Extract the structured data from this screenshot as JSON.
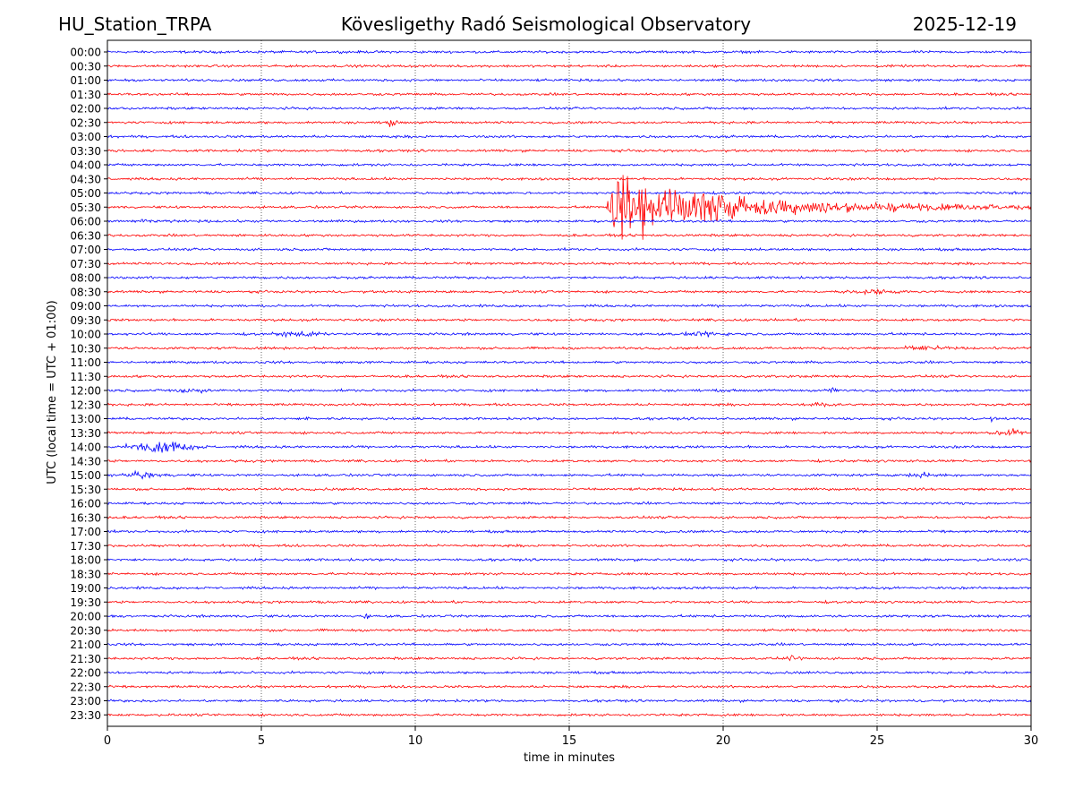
{
  "header": {
    "station": "HU_Station_TRPA",
    "title": "Kövesligethy Radó Seismological Observatory",
    "date": "2025-12-19"
  },
  "chart_data": {
    "type": "line",
    "title": "Kövesligethy Radó Seismological Observatory",
    "xlabel": "time in minutes",
    "ylabel": "UTC (local time = UTC + 01:00)",
    "xlim": [
      0,
      30
    ],
    "xticks": [
      0,
      5,
      10,
      15,
      20,
      25,
      30
    ],
    "grid": "vertical dotted at x ticks",
    "trace_colors": [
      "#0000ff",
      "#ff0000"
    ],
    "rows": [
      "00:00",
      "00:30",
      "01:00",
      "01:30",
      "02:00",
      "02:30",
      "03:00",
      "03:30",
      "04:00",
      "04:30",
      "05:00",
      "05:30",
      "06:00",
      "06:30",
      "07:00",
      "07:30",
      "08:00",
      "08:30",
      "09:00",
      "09:30",
      "10:00",
      "10:30",
      "11:00",
      "11:30",
      "12:00",
      "12:30",
      "13:00",
      "13:30",
      "14:00",
      "14:30",
      "15:00",
      "15:30",
      "16:00",
      "16:30",
      "17:00",
      "17:30",
      "18:00",
      "18:30",
      "19:00",
      "19:30",
      "20:00",
      "20:30",
      "21:00",
      "21:30",
      "22:00",
      "22:30",
      "23:00",
      "23:30"
    ],
    "noise_level": 0.12,
    "events": [
      {
        "row": "02:30",
        "start": 8.9,
        "end": 9.5,
        "amp": 0.4
      },
      {
        "row": "05:30",
        "start": 16.2,
        "end": 30.0,
        "amp": 3.4,
        "decay": 3.2,
        "type": "earthquake"
      },
      {
        "row": "06:00",
        "start": 0.0,
        "end": 2.5,
        "amp": 0.2
      },
      {
        "row": "08:30",
        "start": 23.0,
        "end": 26.5,
        "amp": 0.28
      },
      {
        "row": "10:00",
        "start": 5.0,
        "end": 7.5,
        "amp": 0.28
      },
      {
        "row": "10:00",
        "start": 18.5,
        "end": 20.5,
        "amp": 0.28
      },
      {
        "row": "10:30",
        "start": 25.5,
        "end": 27.5,
        "amp": 0.28
      },
      {
        "row": "12:00",
        "start": 1.7,
        "end": 3.5,
        "amp": 0.35
      },
      {
        "row": "12:00",
        "start": 23.3,
        "end": 23.8,
        "amp": 0.3
      },
      {
        "row": "12:30",
        "start": 22.5,
        "end": 24.0,
        "amp": 0.28
      },
      {
        "row": "13:00",
        "start": 6.4,
        "end": 6.6,
        "amp": 0.6
      },
      {
        "row": "13:00",
        "start": 28.6,
        "end": 28.9,
        "amp": 0.3
      },
      {
        "row": "13:30",
        "start": 28.5,
        "end": 30.0,
        "amp": 0.45
      },
      {
        "row": "14:00",
        "start": 0.0,
        "end": 3.5,
        "amp": 0.6
      },
      {
        "row": "15:00",
        "start": 0.0,
        "end": 2.3,
        "amp": 0.35
      },
      {
        "row": "15:00",
        "start": 25.5,
        "end": 27.5,
        "amp": 0.25
      },
      {
        "row": "20:00",
        "start": 8.3,
        "end": 8.5,
        "amp": 0.6
      },
      {
        "row": "21:30",
        "start": 21.9,
        "end": 22.8,
        "amp": 0.3
      }
    ]
  }
}
